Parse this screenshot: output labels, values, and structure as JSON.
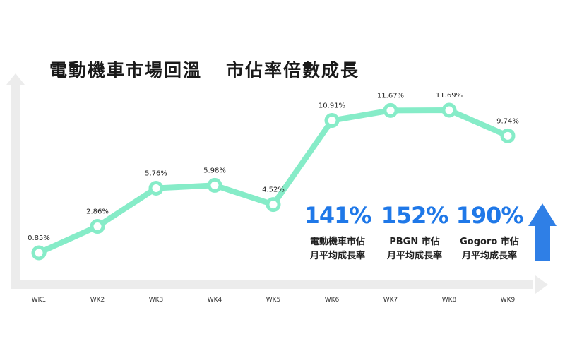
{
  "title_left": "電動機車市場回溫",
  "title_right": "市佔率倍數成長",
  "chart_data": {
    "type": "line",
    "categories": [
      "WK1",
      "WK2",
      "WK3",
      "WK4",
      "WK5",
      "WK6",
      "WK7",
      "WK8",
      "WK9"
    ],
    "values": [
      0.85,
      2.86,
      5.76,
      5.98,
      4.52,
      10.91,
      11.67,
      11.69,
      9.74
    ],
    "data_labels": [
      "0.85%",
      "2.86%",
      "5.76%",
      "5.98%",
      "4.52%",
      "10.91%",
      "11.67%",
      "11.69%",
      "9.74%"
    ],
    "title": "電動機車市場回溫　市佔率倍數成長",
    "xlabel": "",
    "ylabel": "",
    "ylim": [
      0,
      14
    ],
    "grid": false,
    "line_color": "#86ecc8",
    "axis_color": "#ececec"
  },
  "stats": [
    {
      "value": "141%",
      "label1": "電動機車市佔",
      "label2": "月平均成長率"
    },
    {
      "value": "152%",
      "label1": "PBGN 市佔",
      "label2": "月平均成長率"
    },
    {
      "value": "190%",
      "label1": "Gogoro 市佔",
      "label2": "月平均成長率"
    }
  ],
  "colors": {
    "accent": "#1f78e8",
    "arrow": "#2f7fe6",
    "text": "#1a1a1a"
  },
  "icons": {
    "up_arrow": "up-arrow-icon",
    "x_axis_arrow": "x-axis-arrow-icon",
    "y_axis_arrow": "y-axis-arrow-icon"
  }
}
